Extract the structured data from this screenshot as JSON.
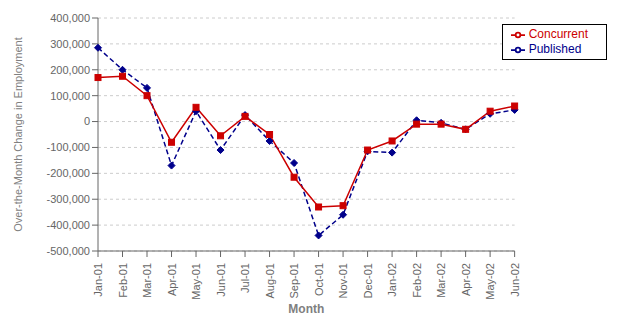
{
  "chart_data": {
    "type": "line",
    "x_label": "Month",
    "y_label": "Over-the-Month Change in Employment",
    "categories": [
      "Jan-01",
      "Feb-01",
      "Mar-01",
      "Apr-01",
      "May-01",
      "Jun-01",
      "Jul-01",
      "Aug-01",
      "Sep-01",
      "Oct-01",
      "Nov-01",
      "Dec-01",
      "Jan-02",
      "Feb-02",
      "Mar-02",
      "Apr-02",
      "May-02",
      "Jun-02"
    ],
    "series": [
      {
        "name": "Published",
        "color": "#00008B",
        "marker": "diamond",
        "line_style": "dashed",
        "values": [
          285000,
          200000,
          130000,
          -170000,
          40000,
          -110000,
          25000,
          -75000,
          -160000,
          -440000,
          -360000,
          -115000,
          -120000,
          5000,
          -5000,
          -30000,
          30000,
          45000
        ]
      },
      {
        "name": "Concurrent",
        "color": "#CC0000",
        "marker": "square",
        "line_style": "solid",
        "values": [
          170000,
          175000,
          100000,
          -80000,
          55000,
          -55000,
          20000,
          -50000,
          -215000,
          -330000,
          -325000,
          -110000,
          -75000,
          -10000,
          -10000,
          -30000,
          40000,
          60000
        ]
      }
    ],
    "ylim": [
      -500000,
      400000
    ],
    "yticks": [
      {
        "value": -500000,
        "label": "-500,000"
      },
      {
        "value": -400000,
        "label": "-400,000"
      },
      {
        "value": -300000,
        "label": "-300,000"
      },
      {
        "value": -200000,
        "label": "-200,000"
      },
      {
        "value": -100000,
        "label": "-100,000"
      },
      0,
      {
        "value": 100000,
        "label": "100,000"
      },
      {
        "value": 200000,
        "label": "200,000"
      },
      {
        "value": 300000,
        "label": "300,000"
      },
      {
        "value": 400000,
        "label": "400,000"
      }
    ],
    "grid": true,
    "legend": "upper right"
  }
}
